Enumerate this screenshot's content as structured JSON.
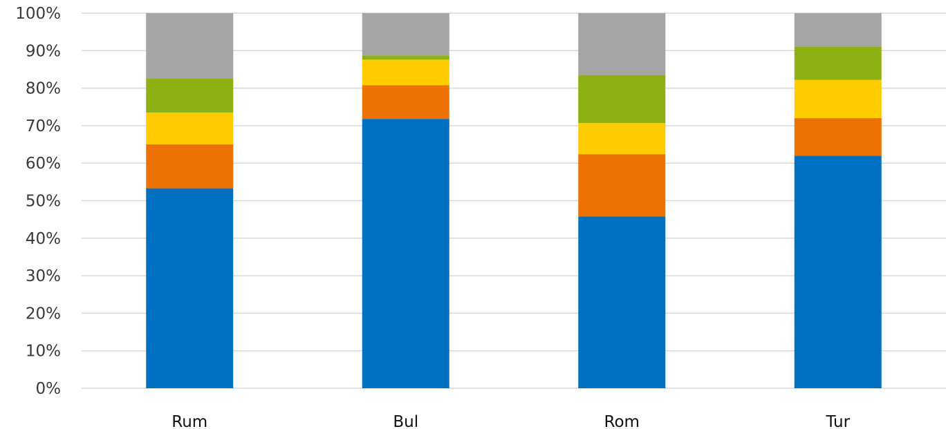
{
  "chart_data": {
    "type": "bar",
    "stacked": true,
    "categories": [
      "Rum",
      "Bul",
      "Rom",
      "Tur"
    ],
    "series": [
      {
        "color": "#0070C0",
        "values": [
          53.3,
          71.8,
          45.8,
          62.0
        ]
      },
      {
        "color": "#ED7103",
        "values": [
          11.7,
          9.0,
          16.6,
          10.0
        ]
      },
      {
        "color": "#FFCC00",
        "values": [
          8.5,
          6.8,
          8.3,
          10.2
        ]
      },
      {
        "color": "#8DB012",
        "values": [
          9.0,
          1.1,
          12.8,
          8.9
        ]
      },
      {
        "color": "#A5A5A5",
        "values": [
          17.5,
          11.3,
          16.5,
          8.9
        ]
      }
    ],
    "yticks": [
      "0%",
      "10%",
      "20%",
      "30%",
      "40%",
      "50%",
      "60%",
      "70%",
      "80%",
      "90%",
      "100%"
    ],
    "ylim": [
      0,
      100
    ],
    "grid": true,
    "legend": "none"
  }
}
